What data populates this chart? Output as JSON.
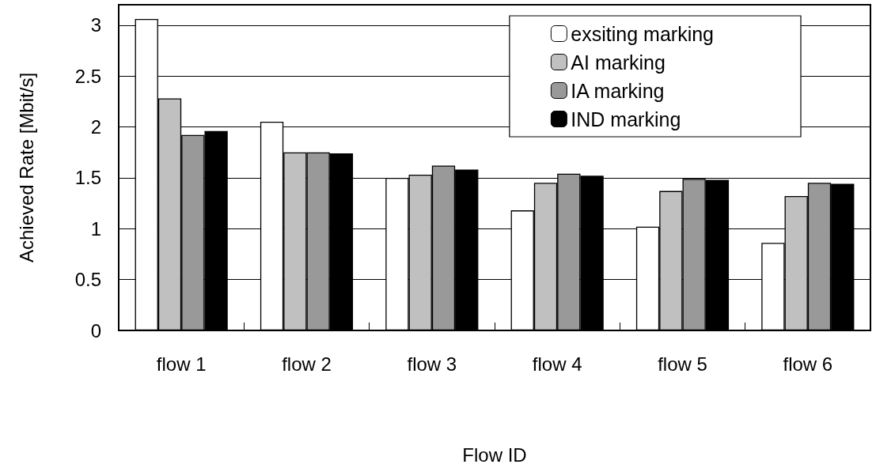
{
  "chart_data": {
    "type": "bar",
    "xlabel": "Flow ID",
    "ylabel": "Achieved Rate [Mbit/s]",
    "categories": [
      "flow 1",
      "flow 2",
      "flow 3",
      "flow 4",
      "flow 5",
      "flow 6"
    ],
    "series": [
      {
        "name": "exsiting marking",
        "color": "#ffffff",
        "values": [
          3.06,
          2.05,
          1.5,
          1.18,
          1.02,
          0.86
        ]
      },
      {
        "name": "AI marking",
        "color": "#c0c0c0",
        "values": [
          2.28,
          1.75,
          1.53,
          1.45,
          1.37,
          1.32
        ]
      },
      {
        "name": "IA marking",
        "color": "#999999",
        "values": [
          1.92,
          1.75,
          1.62,
          1.54,
          1.49,
          1.45
        ]
      },
      {
        "name": "IND marking",
        "color": "#000000",
        "values": [
          1.96,
          1.74,
          1.58,
          1.52,
          1.48,
          1.44
        ]
      }
    ],
    "ylim": [
      0,
      3.2
    ],
    "yticks": [
      0,
      0.5,
      1,
      1.5,
      2,
      2.5,
      3
    ],
    "grid": "y",
    "legend": "top right"
  }
}
